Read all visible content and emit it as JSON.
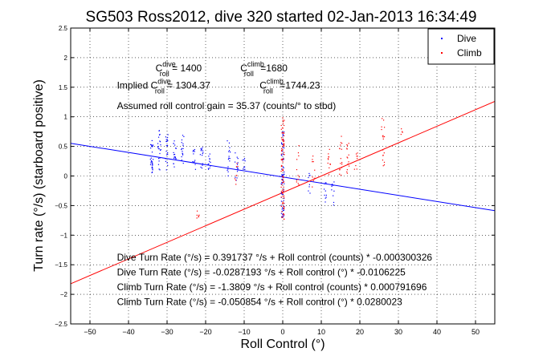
{
  "chart_data": {
    "type": "scatter",
    "title": "SG503 Ross2012, dive 320 started 02-Jan-2013 16:34:49",
    "xlabel": "Roll Control (°)",
    "ylabel": "Turn rate (°/s) (starboard positive)",
    "xlim": [
      -55,
      55
    ],
    "ylim": [
      -2.5,
      2.5
    ],
    "xticks": [
      -50,
      -40,
      -30,
      -20,
      -10,
      0,
      10,
      20,
      30,
      40,
      50
    ],
    "yticks": [
      -2.5,
      -2,
      -1.5,
      -1,
      -0.5,
      0,
      0.5,
      1,
      1.5,
      2,
      2.5
    ],
    "grid": true,
    "legend": {
      "placement": "top-right",
      "entries": [
        {
          "label": "Dive",
          "color": "#0000ff"
        },
        {
          "label": "Climb",
          "color": "#ff0000"
        }
      ]
    },
    "fit_lines": [
      {
        "name": "Dive",
        "color": "#0000ff",
        "x": [
          -55,
          55
        ],
        "y": [
          0.5527,
          -0.5867
        ]
      },
      {
        "name": "Climb",
        "color": "#ff0000",
        "x": [
          -55,
          55
        ],
        "y": [
          -1.8216,
          1.2605
        ]
      }
    ],
    "scatter_clusters": [
      {
        "series": "Dive",
        "x": -34,
        "y_range": [
          0.0,
          0.6
        ],
        "n": 28
      },
      {
        "series": "Dive",
        "x": -32,
        "y_range": [
          0.1,
          0.8
        ],
        "n": 22
      },
      {
        "series": "Dive",
        "x": -30,
        "y_range": [
          0.1,
          0.7
        ],
        "n": 20
      },
      {
        "series": "Dive",
        "x": -28,
        "y_range": [
          0.15,
          0.6
        ],
        "n": 18
      },
      {
        "series": "Dive",
        "x": -26,
        "y_range": [
          0.2,
          0.7
        ],
        "n": 16
      },
      {
        "series": "Dive",
        "x": -23,
        "y_range": [
          0.1,
          0.45
        ],
        "n": 12
      },
      {
        "series": "Dive",
        "x": -21,
        "y_range": [
          0.1,
          0.5
        ],
        "n": 14
      },
      {
        "series": "Dive",
        "x": -19,
        "y_range": [
          0.1,
          0.4
        ],
        "n": 12
      },
      {
        "series": "Dive",
        "x": -14,
        "y_range": [
          0.0,
          0.6
        ],
        "n": 16
      },
      {
        "series": "Dive",
        "x": -12,
        "y_range": [
          -0.1,
          0.4
        ],
        "n": 14
      },
      {
        "series": "Dive",
        "x": -10,
        "y_range": [
          0.1,
          0.3
        ],
        "n": 8
      },
      {
        "series": "Dive",
        "x": 0,
        "y_range": [
          -0.7,
          0.8
        ],
        "n": 70
      },
      {
        "series": "Dive",
        "x": 7,
        "y_range": [
          -0.3,
          0.05
        ],
        "n": 8
      },
      {
        "series": "Dive",
        "x": 11,
        "y_range": [
          -0.45,
          -0.05
        ],
        "n": 10
      },
      {
        "series": "Dive",
        "x": 13,
        "y_range": [
          -0.5,
          -0.1
        ],
        "n": 10
      },
      {
        "series": "Climb",
        "x": -22,
        "y_range": [
          -0.75,
          -0.5
        ],
        "n": 6
      },
      {
        "series": "Climb",
        "x": -12,
        "y_range": [
          -0.2,
          0.3
        ],
        "n": 8
      },
      {
        "series": "Climb",
        "x": 0,
        "y_range": [
          -0.75,
          1.0
        ],
        "n": 90
      },
      {
        "series": "Climb",
        "x": 4,
        "y_range": [
          -0.15,
          0.6
        ],
        "n": 12
      },
      {
        "series": "Climb",
        "x": 8,
        "y_range": [
          -0.2,
          0.4
        ],
        "n": 10
      },
      {
        "series": "Climb",
        "x": 12,
        "y_range": [
          0.0,
          0.5
        ],
        "n": 12
      },
      {
        "series": "Climb",
        "x": 15,
        "y_range": [
          0.0,
          0.7
        ],
        "n": 16
      },
      {
        "series": "Climb",
        "x": 17,
        "y_range": [
          0.0,
          0.6
        ],
        "n": 14
      },
      {
        "series": "Climb",
        "x": 19,
        "y_range": [
          0.1,
          0.4
        ],
        "n": 8
      },
      {
        "series": "Climb",
        "x": 26,
        "y_range": [
          0.1,
          1.0
        ],
        "n": 18
      },
      {
        "series": "Climb",
        "x": 31,
        "y_range": [
          0.7,
          0.8
        ],
        "n": 4
      }
    ],
    "annotations": [
      {
        "id": "c_roll_dive",
        "x": -33,
        "y": 1.77,
        "base": "C",
        "sup": "dive",
        "sub": "roll",
        "text": " = 1400"
      },
      {
        "id": "c_roll_climb",
        "x": -11,
        "y": 1.77,
        "base": "C",
        "sup": "climb",
        "sub": "roll",
        "text": " =1680"
      },
      {
        "id": "implied_dive",
        "x": -43,
        "y": 1.48,
        "prefix": "Implied ",
        "base": "C",
        "sup": "dive",
        "sub": "roll",
        "text": " = 1304.37"
      },
      {
        "id": "implied_climb",
        "x": -6,
        "y": 1.48,
        "base": "C",
        "sup": "climb",
        "sub": "roll",
        "text": " =1744.23"
      },
      {
        "id": "gain",
        "x": -43,
        "y": 1.13,
        "text": "Assumed roll control gain = 35.37 (counts/° to stbd)"
      },
      {
        "id": "eq1",
        "x": -43,
        "y": -1.43,
        "text": "Dive Turn Rate (°/s) = 0.391737 °/s + Roll control (counts) * -0.000300326"
      },
      {
        "id": "eq2",
        "x": -43,
        "y": -1.68,
        "text": "Dive Turn Rate (°/s) = -0.0287193 °/s + Roll control (°) * -0.0106225"
      },
      {
        "id": "eq3",
        "x": -43,
        "y": -1.93,
        "text": "Climb Turn Rate (°/s) = -1.3809 °/s + Roll control (counts) * 0.000791696"
      },
      {
        "id": "eq4",
        "x": -43,
        "y": -2.18,
        "text": "Climb Turn Rate (°/s) = -0.050854 °/s + Roll control (°) * 0.0280023"
      }
    ]
  }
}
